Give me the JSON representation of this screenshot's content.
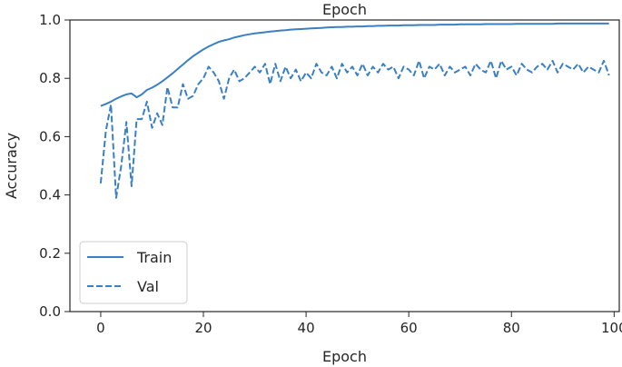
{
  "chart_data": {
    "type": "line",
    "title": "Epoch",
    "xlabel": "Epoch",
    "ylabel": "Accuracy",
    "xlim": [
      -6,
      101
    ],
    "ylim": [
      0.0,
      1.0
    ],
    "xticks": [
      0,
      20,
      40,
      60,
      80,
      100
    ],
    "yticks": [
      0.0,
      0.2,
      0.4,
      0.6,
      0.8,
      1.0
    ],
    "xtick_labels": [
      "0",
      "20",
      "40",
      "60",
      "80",
      "100"
    ],
    "ytick_labels": [
      "0.0",
      "0.2",
      "0.4",
      "0.6",
      "0.8",
      "1.0"
    ],
    "grid": false,
    "legend_position": "lower-left",
    "line_color": "#3a80c2",
    "series": [
      {
        "name": "Train",
        "style": "solid",
        "x": [
          0,
          1,
          2,
          3,
          4,
          5,
          6,
          7,
          8,
          9,
          10,
          11,
          12,
          13,
          14,
          15,
          16,
          17,
          18,
          19,
          20,
          21,
          22,
          23,
          24,
          25,
          26,
          27,
          28,
          29,
          30,
          31,
          32,
          33,
          34,
          35,
          36,
          37,
          38,
          39,
          40,
          41,
          42,
          43,
          44,
          45,
          46,
          47,
          48,
          49,
          50,
          51,
          52,
          53,
          54,
          55,
          56,
          57,
          58,
          59,
          60,
          61,
          62,
          63,
          64,
          65,
          66,
          67,
          68,
          69,
          70,
          71,
          72,
          73,
          74,
          75,
          76,
          77,
          78,
          79,
          80,
          81,
          82,
          83,
          84,
          85,
          86,
          87,
          88,
          89,
          90,
          91,
          92,
          93,
          94,
          95,
          96,
          97,
          98,
          99
        ],
        "values": [
          0.705,
          0.712,
          0.72,
          0.73,
          0.738,
          0.745,
          0.748,
          0.735,
          0.745,
          0.76,
          0.768,
          0.778,
          0.79,
          0.803,
          0.817,
          0.832,
          0.847,
          0.862,
          0.876,
          0.888,
          0.899,
          0.909,
          0.917,
          0.925,
          0.93,
          0.934,
          0.94,
          0.944,
          0.948,
          0.951,
          0.954,
          0.956,
          0.958,
          0.96,
          0.962,
          0.964,
          0.965,
          0.967,
          0.968,
          0.969,
          0.97,
          0.971,
          0.972,
          0.973,
          0.974,
          0.975,
          0.976,
          0.976,
          0.977,
          0.977,
          0.978,
          0.978,
          0.979,
          0.979,
          0.98,
          0.98,
          0.981,
          0.981,
          0.981,
          0.982,
          0.982,
          0.982,
          0.983,
          0.983,
          0.983,
          0.983,
          0.984,
          0.984,
          0.984,
          0.984,
          0.985,
          0.985,
          0.985,
          0.985,
          0.985,
          0.986,
          0.986,
          0.986,
          0.986,
          0.986,
          0.986,
          0.987,
          0.987,
          0.987,
          0.987,
          0.987,
          0.987,
          0.987,
          0.987,
          0.988,
          0.988,
          0.988,
          0.988,
          0.988,
          0.988,
          0.988,
          0.988,
          0.988,
          0.988,
          0.988
        ]
      },
      {
        "name": "Val",
        "style": "dashed",
        "x": [
          0,
          1,
          2,
          3,
          4,
          5,
          6,
          7,
          8,
          9,
          10,
          11,
          12,
          13,
          14,
          15,
          16,
          17,
          18,
          19,
          20,
          21,
          22,
          23,
          24,
          25,
          26,
          27,
          28,
          29,
          30,
          31,
          32,
          33,
          34,
          35,
          36,
          37,
          38,
          39,
          40,
          41,
          42,
          43,
          44,
          45,
          46,
          47,
          48,
          49,
          50,
          51,
          52,
          53,
          54,
          55,
          56,
          57,
          58,
          59,
          60,
          61,
          62,
          63,
          64,
          65,
          66,
          67,
          68,
          69,
          70,
          71,
          72,
          73,
          74,
          75,
          76,
          77,
          78,
          79,
          80,
          81,
          82,
          83,
          84,
          85,
          86,
          87,
          88,
          89,
          90,
          91,
          92,
          93,
          94,
          95,
          96,
          97,
          98,
          99
        ],
        "values": [
          0.44,
          0.62,
          0.71,
          0.39,
          0.5,
          0.65,
          0.43,
          0.66,
          0.66,
          0.72,
          0.63,
          0.68,
          0.64,
          0.77,
          0.7,
          0.7,
          0.78,
          0.73,
          0.74,
          0.78,
          0.8,
          0.84,
          0.82,
          0.79,
          0.73,
          0.8,
          0.83,
          0.79,
          0.8,
          0.82,
          0.84,
          0.82,
          0.85,
          0.78,
          0.85,
          0.79,
          0.84,
          0.8,
          0.83,
          0.79,
          0.82,
          0.8,
          0.85,
          0.82,
          0.81,
          0.84,
          0.8,
          0.85,
          0.82,
          0.84,
          0.81,
          0.85,
          0.81,
          0.84,
          0.82,
          0.85,
          0.83,
          0.84,
          0.8,
          0.84,
          0.83,
          0.81,
          0.86,
          0.8,
          0.84,
          0.83,
          0.85,
          0.81,
          0.84,
          0.82,
          0.83,
          0.84,
          0.81,
          0.85,
          0.83,
          0.82,
          0.86,
          0.8,
          0.86,
          0.83,
          0.84,
          0.81,
          0.85,
          0.83,
          0.82,
          0.84,
          0.85,
          0.83,
          0.86,
          0.82,
          0.85,
          0.84,
          0.83,
          0.85,
          0.82,
          0.84,
          0.83,
          0.82,
          0.86,
          0.81
        ]
      }
    ]
  }
}
